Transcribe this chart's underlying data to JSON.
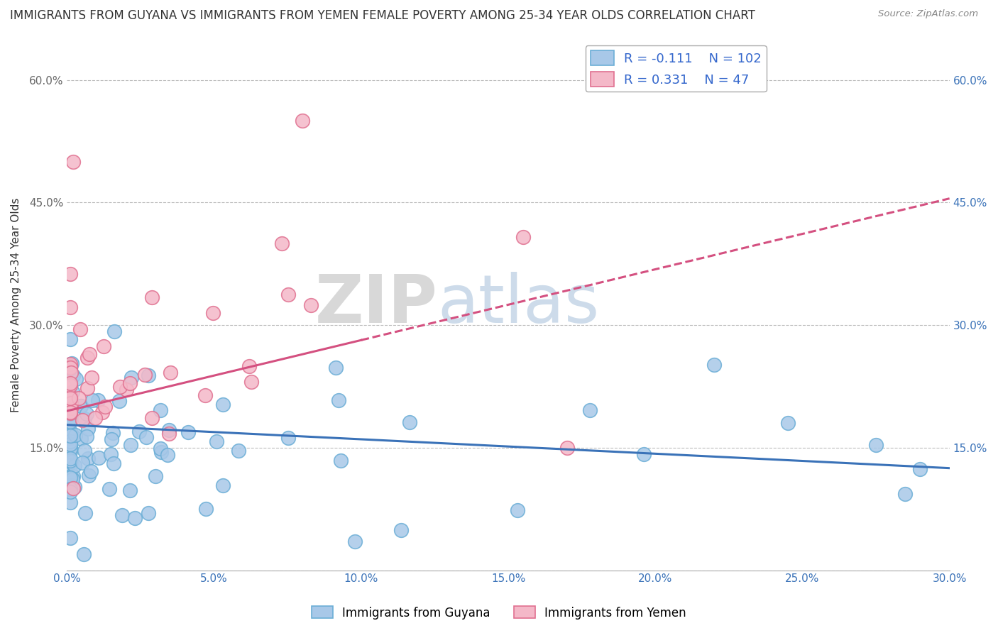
{
  "title": "IMMIGRANTS FROM GUYANA VS IMMIGRANTS FROM YEMEN FEMALE POVERTY AMONG 25-34 YEAR OLDS CORRELATION CHART",
  "source": "Source: ZipAtlas.com",
  "ylabel": "Female Poverty Among 25-34 Year Olds",
  "xlim": [
    0.0,
    0.3
  ],
  "ylim": [
    0.0,
    0.65
  ],
  "xtick_vals": [
    0.0,
    0.05,
    0.1,
    0.15,
    0.2,
    0.25,
    0.3
  ],
  "xtick_labels": [
    "0.0%",
    "5.0%",
    "10.0%",
    "15.0%",
    "20.0%",
    "25.0%",
    "30.0%"
  ],
  "ytick_vals": [
    0.0,
    0.15,
    0.3,
    0.45,
    0.6
  ],
  "ytick_labels_left": [
    "",
    "15.0%",
    "30.0%",
    "45.0%",
    "60.0%"
  ],
  "ytick_labels_right": [
    "",
    "15.0%",
    "30.0%",
    "45.0%",
    "60.0%"
  ],
  "guyana_R": -0.111,
  "guyana_N": 102,
  "yemen_R": 0.331,
  "yemen_N": 47,
  "guyana_color": "#a8c8e8",
  "guyana_edge_color": "#6baed6",
  "yemen_color": "#f4b8c8",
  "yemen_edge_color": "#e07090",
  "guyana_line_color": "#3a72b8",
  "yemen_line_color": "#d45080",
  "watermark_zip": "ZIP",
  "watermark_atlas": "atlas",
  "legend_label_guyana": "Immigrants from Guyana",
  "legend_label_yemen": "Immigrants from Yemen",
  "title_fontsize": 12,
  "tick_fontsize": 11,
  "ylabel_fontsize": 11
}
